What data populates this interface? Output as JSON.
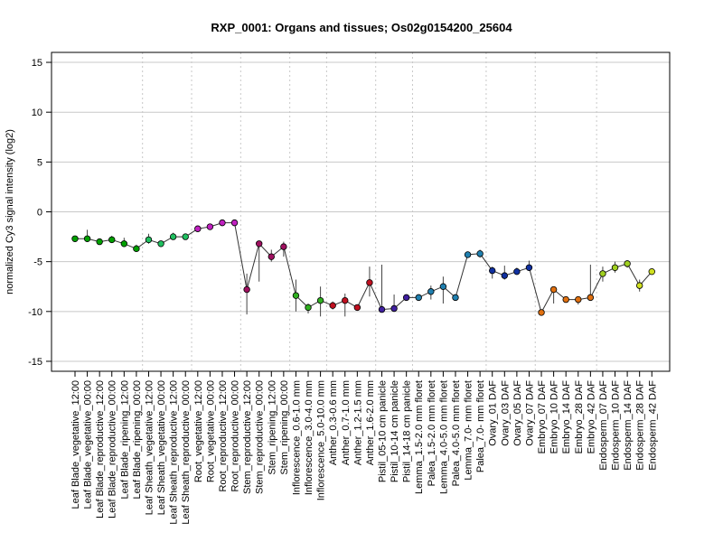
{
  "chart_data": {
    "type": "line",
    "title": "RXP_0001: Organs and tissues; Os02g0154200_25604",
    "xlabel": "",
    "ylabel": "normalized Cy3 signal intensity (log2)",
    "ylim": [
      -16,
      16
    ],
    "yticks": [
      -15,
      -10,
      -5,
      0,
      5,
      10,
      15
    ],
    "grid": true,
    "categories": [
      "Leaf Blade_vegetative_12:00",
      "Leaf Blade_vegetative_00:00",
      "Leaf Blade_reproductive_12:00",
      "Leaf Blade_reproductive_00:00",
      "Leaf Blade_ripening_12:00",
      "Leaf Blade_ripening_00:00",
      "Leaf Sheath_vegetative_12:00",
      "Leaf Sheath_vegetative_00:00",
      "Leaf Sheath_reproductive_12:00",
      "Leaf Sheath_reproductive_00:00",
      "Root_vegetative_12:00",
      "Root_vegetative_00:00",
      "Root_reproductive_12:00",
      "Root_reproductive_00:00",
      "Stem_reproductive_12:00",
      "Stem_reproductive_00:00",
      "Stem_ripening_12:00",
      "Stem_ripening_00:00",
      "Inflorescence_0.6-1.0 mm",
      "Inflorescence_3.0-4.0 mm",
      "Inflorescence_5.0-10.0 mm",
      "Anther_0.3-0.6 mm",
      "Anther_0.7-1.0 mm",
      "Anther_1.2-1.5 mm",
      "Anther_1.6-2.0 mm",
      "Pistil_05-10 cm panicle",
      "Pistil_10-14 cm panicle",
      "Pistil_14-18 cm panicle",
      "Lemma_1.5-2.0 mm floret",
      "Palea_1.5-2.0 mm floret",
      "Lemma_4.0-5.0 mm floret",
      "Palea_4.0-5.0 mm floret",
      "Lemma_7.0- mm floret",
      "Palea_7.0- mm floret",
      "Ovary_01 DAF",
      "Ovary_03 DAF",
      "Ovary_05 DAF",
      "Ovary_07 DAF",
      "Embryo_07 DAF",
      "Embryo_10 DAF",
      "Embryo_14 DAF",
      "Embryo_28 DAF",
      "Embryo_42 DAF",
      "Endosperm_07 DAF",
      "Endosperm_10 DAF",
      "Endosperm_14 DAF",
      "Endosperm_28 DAF",
      "Endosperm_42 DAF"
    ],
    "values": [
      -2.7,
      -2.7,
      -3.0,
      -2.8,
      -3.2,
      -3.7,
      -2.8,
      -3.2,
      -2.5,
      -2.5,
      -1.7,
      -1.5,
      -1.1,
      -1.1,
      -7.8,
      -3.2,
      -4.5,
      -3.5,
      -8.4,
      -9.6,
      -8.9,
      -9.4,
      -8.9,
      -9.6,
      -7.1,
      -9.8,
      -9.7,
      -8.6,
      -8.6,
      -8.0,
      -7.5,
      -8.6,
      -4.3,
      -4.2,
      -5.9,
      -6.4,
      -6.0,
      -5.6,
      -10.1,
      -7.8,
      -8.8,
      -8.8,
      -8.6,
      -6.2,
      -5.6,
      -5.2,
      -7.4,
      -6.0
    ],
    "err_low": [
      -3.0,
      -3.0,
      -3.2,
      -3.1,
      -3.5,
      -4.0,
      -3.2,
      -3.5,
      -2.8,
      -2.7,
      -1.9,
      -1.8,
      -1.3,
      -1.3,
      -10.3,
      -7.0,
      -5.0,
      -4.5,
      -10.0,
      -10.2,
      -10.5,
      -9.8,
      -10.5,
      -9.9,
      -8.5,
      -10.1,
      -10.0,
      -8.9,
      -8.9,
      -8.8,
      -9.2,
      -8.8,
      -4.5,
      -4.6,
      -6.7,
      -6.8,
      -6.3,
      -5.9,
      -10.4,
      -9.2,
      -9.1,
      -9.3,
      -8.9,
      -7.0,
      -6.1,
      -5.6,
      -8.0,
      -6.3
    ],
    "err_high": [
      -2.4,
      -1.8,
      -2.7,
      -2.4,
      -2.6,
      -3.3,
      -2.2,
      -2.9,
      -2.1,
      -2.2,
      -1.5,
      -1.2,
      -0.9,
      -0.9,
      -6.2,
      -3.0,
      -3.8,
      -3.0,
      -6.8,
      -9.2,
      -7.5,
      -9.0,
      -8.2,
      -9.3,
      -5.5,
      -5.3,
      -8.3,
      -8.3,
      -8.3,
      -7.4,
      -6.5,
      -8.3,
      -4.0,
      -3.8,
      -5.5,
      -5.4,
      -5.6,
      -4.9,
      -9.8,
      -7.5,
      -8.5,
      -8.5,
      -5.3,
      -5.5,
      -5.0,
      -4.9,
      -6.8,
      -5.7
    ],
    "colors": [
      "#00a000",
      "#00a000",
      "#00a000",
      "#00a000",
      "#00a000",
      "#00a000",
      "#20c060",
      "#20c060",
      "#20c060",
      "#20c060",
      "#c020c0",
      "#c020c0",
      "#c020c0",
      "#c020c0",
      "#a01060",
      "#a01060",
      "#a01060",
      "#a01060",
      "#30b020",
      "#30b020",
      "#30b020",
      "#c01020",
      "#c01020",
      "#c01020",
      "#c01020",
      "#4020a0",
      "#4020a0",
      "#4020a0",
      "#2080b0",
      "#2080b0",
      "#2080b0",
      "#2080b0",
      "#2080b0",
      "#2080b0",
      "#1030a0",
      "#1030a0",
      "#1030a0",
      "#1030a0",
      "#e07010",
      "#e07010",
      "#e07010",
      "#e07010",
      "#e07010",
      "#a0d020",
      "#a0d020",
      "#a0d020",
      "#d0e020",
      "#d0e020"
    ],
    "group_separators_after": [
      5,
      9,
      13,
      17,
      20,
      24,
      27,
      33,
      37,
      42
    ]
  }
}
